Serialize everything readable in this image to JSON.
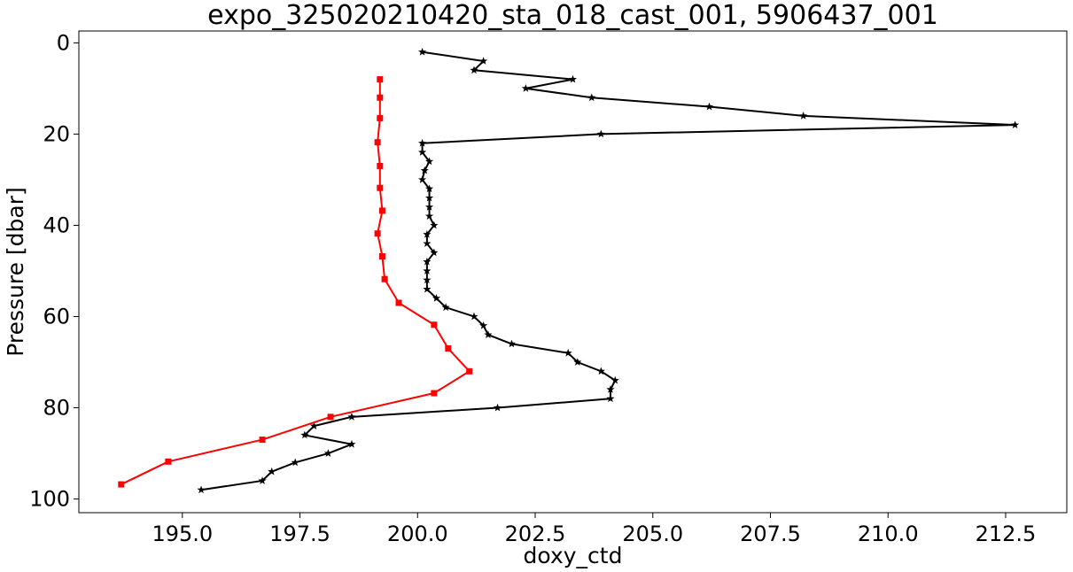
{
  "chart_data": {
    "type": "line",
    "title": "expo_325020210420_sta_018_cast_001, 5906437_001",
    "xlabel": "doxy_ctd",
    "ylabel": "Pressure [dbar]",
    "xlim": [
      192.8,
      213.8
    ],
    "ylim": [
      103,
      -2.6
    ],
    "y_inverted": true,
    "grid": false,
    "legend": false,
    "xticks": [
      195.0,
      197.5,
      200.0,
      202.5,
      205.0,
      207.5,
      210.0,
      212.5
    ],
    "xtick_labels": [
      "195.0",
      "197.5",
      "200.0",
      "202.5",
      "205.0",
      "207.5",
      "210.0",
      "212.5"
    ],
    "yticks": [
      0,
      20,
      40,
      60,
      80,
      100
    ],
    "ytick_labels": [
      "0",
      "20",
      "40",
      "60",
      "80",
      "100"
    ],
    "series": [
      {
        "color": "#000000",
        "marker": "star",
        "points": [
          [
            200.1,
            2
          ],
          [
            201.4,
            4
          ],
          [
            201.2,
            6
          ],
          [
            203.3,
            8
          ],
          [
            202.3,
            10
          ],
          [
            203.7,
            12
          ],
          [
            206.2,
            14
          ],
          [
            208.2,
            16
          ],
          [
            212.7,
            18
          ],
          [
            203.9,
            20
          ],
          [
            200.1,
            22
          ],
          [
            200.1,
            24
          ],
          [
            200.25,
            26
          ],
          [
            200.15,
            28
          ],
          [
            200.1,
            30
          ],
          [
            200.25,
            32
          ],
          [
            200.25,
            34
          ],
          [
            200.25,
            36
          ],
          [
            200.25,
            38
          ],
          [
            200.35,
            40
          ],
          [
            200.2,
            42
          ],
          [
            200.2,
            44
          ],
          [
            200.35,
            46
          ],
          [
            200.2,
            48
          ],
          [
            200.2,
            50
          ],
          [
            200.2,
            52
          ],
          [
            200.2,
            54
          ],
          [
            200.4,
            56
          ],
          [
            200.6,
            58
          ],
          [
            201.2,
            60
          ],
          [
            201.4,
            62
          ],
          [
            201.5,
            64
          ],
          [
            202.0,
            66
          ],
          [
            203.2,
            68
          ],
          [
            203.4,
            70
          ],
          [
            203.9,
            72
          ],
          [
            204.2,
            74
          ],
          [
            204.1,
            76
          ],
          [
            204.1,
            78
          ],
          [
            201.7,
            80
          ],
          [
            198.6,
            82
          ],
          [
            197.8,
            84
          ],
          [
            197.6,
            86
          ],
          [
            198.6,
            88
          ],
          [
            198.1,
            90
          ],
          [
            197.4,
            92
          ],
          [
            196.9,
            94
          ],
          [
            196.7,
            96
          ],
          [
            195.4,
            98
          ]
        ]
      },
      {
        "color": "#ff0000",
        "marker": "square",
        "points": [
          [
            199.2,
            8
          ],
          [
            199.2,
            12
          ],
          [
            199.2,
            16.5
          ],
          [
            199.15,
            21.8
          ],
          [
            199.2,
            27
          ],
          [
            199.2,
            31.8
          ],
          [
            199.25,
            36.8
          ],
          [
            199.15,
            41.8
          ],
          [
            199.25,
            46.8
          ],
          [
            199.3,
            51.8
          ],
          [
            199.6,
            57
          ],
          [
            200.35,
            61.8
          ],
          [
            200.65,
            67
          ],
          [
            201.1,
            72
          ],
          [
            200.35,
            76.8
          ],
          [
            198.15,
            82
          ],
          [
            196.7,
            87
          ],
          [
            194.7,
            91.8
          ],
          [
            193.7,
            96.8
          ]
        ]
      }
    ]
  }
}
